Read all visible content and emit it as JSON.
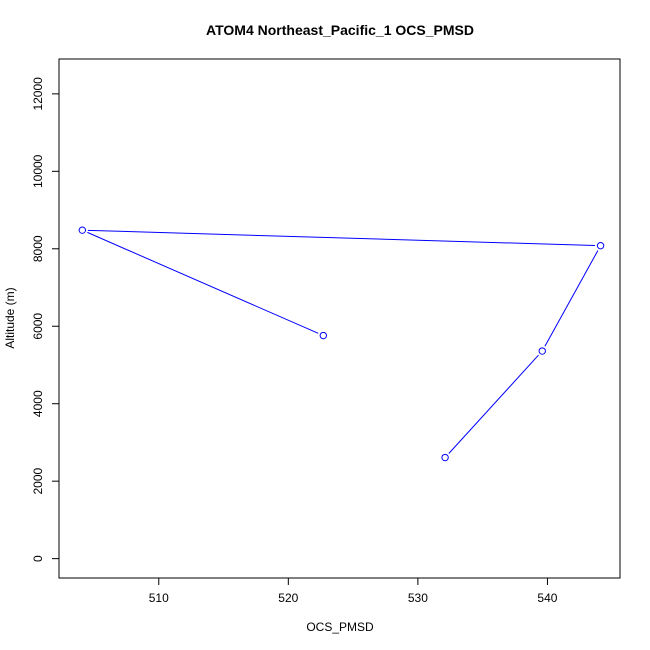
{
  "chart_data": {
    "type": "line",
    "title": "ATOM4 Northeast_Pacific_1 OCS_PMSD",
    "xlabel": "OCS_PMSD",
    "ylabel": "Altitude (m)",
    "xlim": [
      502.3,
      545.6
    ],
    "ylim": [
      -500,
      12900
    ],
    "x_ticks": [
      510,
      520,
      530,
      540
    ],
    "y_ticks": [
      0,
      2000,
      4000,
      6000,
      8000,
      10000,
      12000
    ],
    "series": [
      {
        "color": "#0000ff",
        "marker": "open-circle",
        "points": [
          {
            "x": 522.7,
            "y": 5760
          },
          {
            "x": 504.1,
            "y": 8480
          },
          {
            "x": 544.1,
            "y": 8080
          },
          {
            "x": 539.6,
            "y": 5360
          },
          {
            "x": 532.1,
            "y": 2610
          }
        ]
      }
    ],
    "grid": false,
    "legend": "none"
  }
}
